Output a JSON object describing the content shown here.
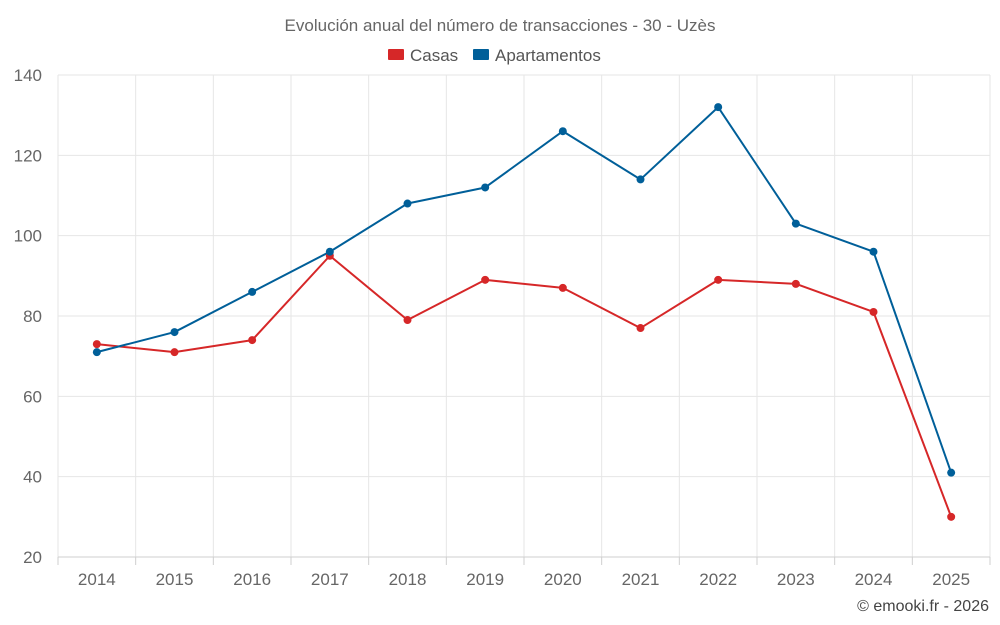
{
  "chart_data": {
    "type": "line",
    "title": "Evolución anual del número de transacciones - 30 - Uzès",
    "categories": [
      "2014",
      "2015",
      "2016",
      "2017",
      "2018",
      "2019",
      "2020",
      "2021",
      "2022",
      "2023",
      "2024",
      "2025"
    ],
    "series": [
      {
        "name": "Casas",
        "color": "#d62728",
        "values": [
          73,
          71,
          74,
          95,
          79,
          89,
          87,
          77,
          89,
          88,
          81,
          30
        ]
      },
      {
        "name": "Apartamentos",
        "color": "#005f99",
        "values": [
          71,
          76,
          86,
          96,
          108,
          112,
          126,
          114,
          132,
          103,
          96,
          41
        ]
      }
    ],
    "ylim": [
      20,
      140
    ],
    "yticks": [
      20,
      40,
      60,
      80,
      100,
      120,
      140
    ],
    "xlabel": "",
    "ylabel": "",
    "grid": true,
    "legend_position": "top-center"
  },
  "credit": "© emooki.fr - 2026"
}
